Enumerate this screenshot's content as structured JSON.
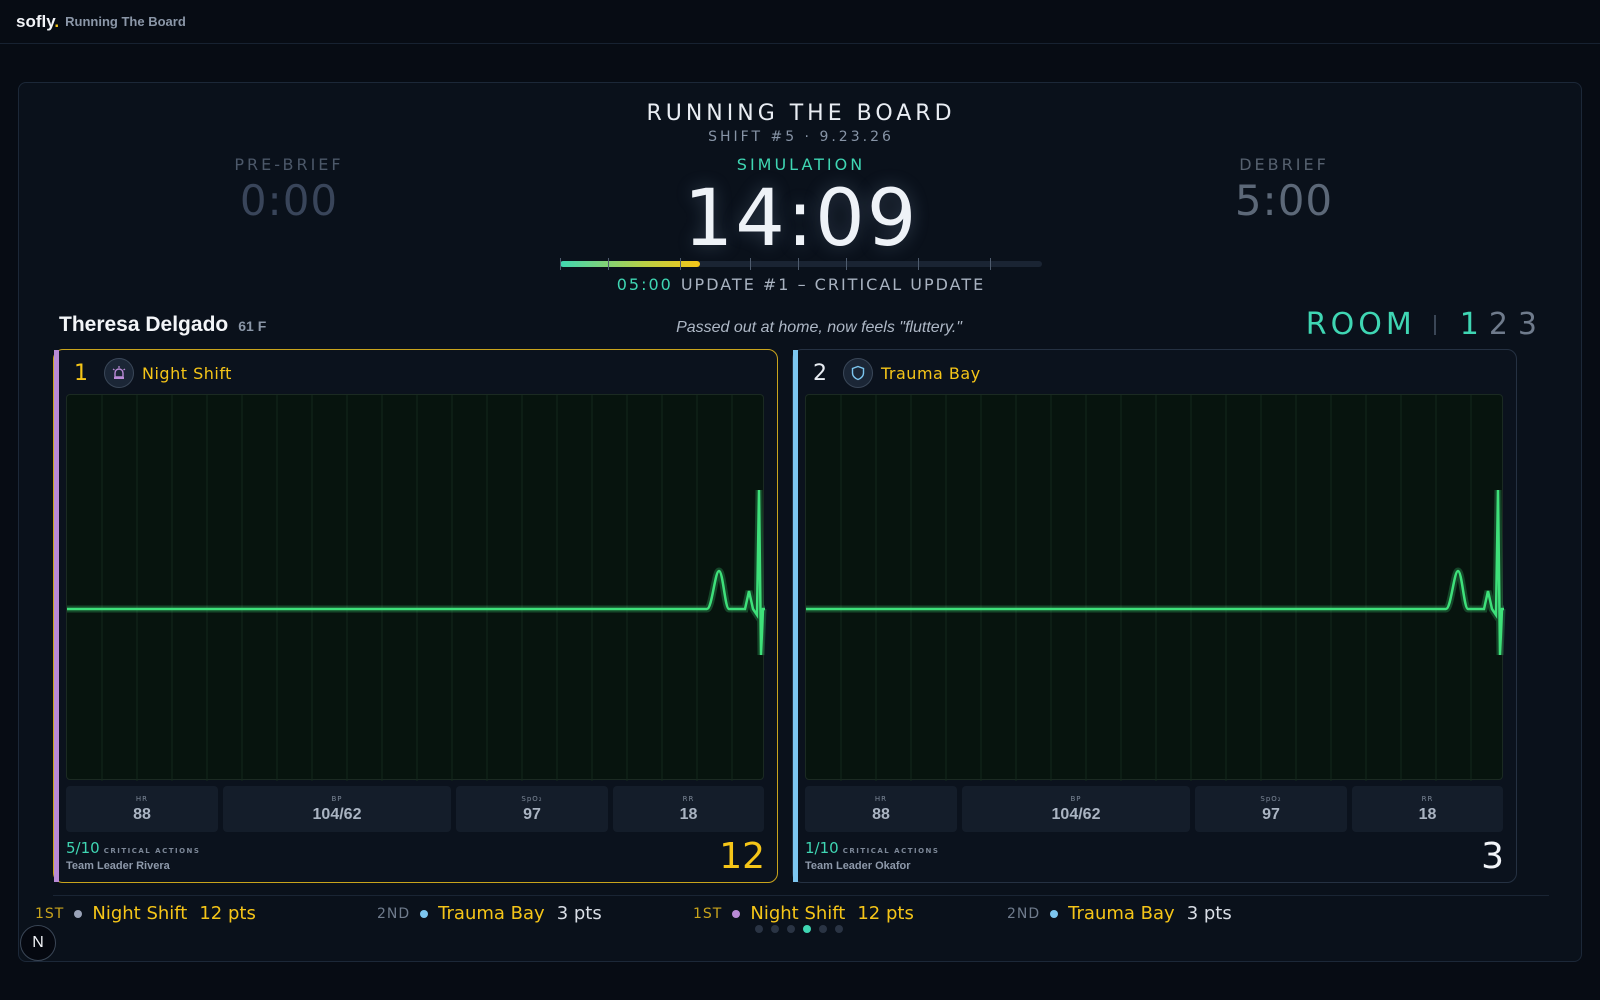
{
  "app": {
    "brand": "sofly",
    "brand_dot": ".",
    "title": "Running The Board"
  },
  "header": {
    "title": "RUNNING THE BOARD",
    "subtitle": "SHIFT #5 · 9.23.26"
  },
  "phases": {
    "prebrief": {
      "label": "PRE-BRIEF",
      "time": "0:00"
    },
    "simulation": {
      "label": "SIMULATION",
      "time": "14:09"
    },
    "debrief": {
      "label": "DEBRIEF",
      "time": "5:00"
    }
  },
  "progress": {
    "fraction": 0.29
  },
  "update": {
    "time": "05:00",
    "text": "UPDATE #1 – CRITICAL UPDATE"
  },
  "patient": {
    "name": "Theresa Delgado",
    "meta": "61 F",
    "complaint": "Passed out at home, now feels \"fluttery.\""
  },
  "room": {
    "label": "ROOM",
    "numbers": [
      "1",
      "2",
      "3"
    ],
    "active": "1"
  },
  "teams": [
    {
      "rank": "1",
      "name": "Night Shift",
      "icon": "siren-icon",
      "stripe_color": "#b98ad6",
      "vitals": [
        {
          "label": "HR",
          "value": "88"
        },
        {
          "label": "BP",
          "value": "104/62"
        },
        {
          "label": "SpO₂",
          "value": "97"
        },
        {
          "label": "RR",
          "value": "18"
        }
      ],
      "critical": "5/10",
      "critical_label": "CRITICAL ACTIONS",
      "leader": "Team Leader Rivera",
      "score": "12"
    },
    {
      "rank": "2",
      "name": "Trauma Bay",
      "icon": "shield-icon",
      "stripe_color": "#7cc6f0",
      "vitals": [
        {
          "label": "HR",
          "value": "88"
        },
        {
          "label": "BP",
          "value": "104/62"
        },
        {
          "label": "SpO₂",
          "value": "97"
        },
        {
          "label": "RR",
          "value": "18"
        }
      ],
      "critical": "1/10",
      "critical_label": "CRITICAL ACTIONS",
      "leader": "Team Leader Okafor",
      "score": "3"
    }
  ],
  "ticker": [
    {
      "place": "1ST",
      "name": "Night Shift",
      "pts": "12 pts",
      "dot_color": "#9aa3b8"
    },
    {
      "place": "2ND",
      "name": "Trauma Bay",
      "pts": "3 pts",
      "dot_color": "#7cc6f0"
    },
    {
      "place": "1ST",
      "name": "Night Shift",
      "pts": "12 pts",
      "dot_color": "#b98ad6"
    },
    {
      "place": "2ND",
      "name": "Trauma Bay",
      "pts": "3 pts",
      "dot_color": "#7cc6f0"
    }
  ],
  "pager": {
    "count": 6,
    "active": 3
  },
  "colors": {
    "accent": "#3fd6b3",
    "gold": "#f5c518",
    "ecg": "#3ee07a"
  },
  "footer_badge": "N"
}
